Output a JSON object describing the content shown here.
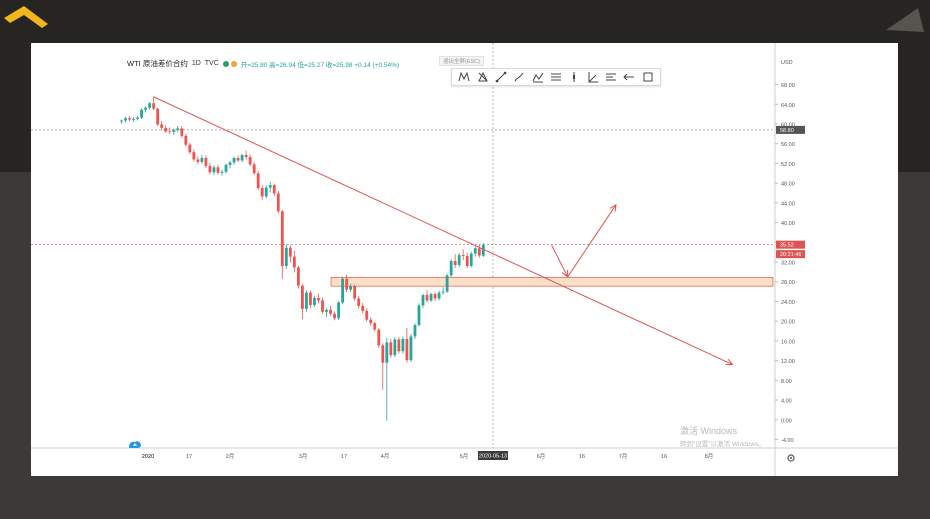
{
  "header": {
    "symbol": "WTI 原油差价合约",
    "interval": "1D",
    "source": "TVC",
    "ohlc": "开=25.80 高=26.94 低=25.27 收=25.98 +0.14 (+0.54%)"
  },
  "esc_hint": "退出全屏(ESC)",
  "toolbar_icons": [
    "pattern-icon",
    "triangle-icon",
    "line-icon",
    "brush-icon",
    "measure-icon",
    "fib-icon",
    "vertical-line-icon",
    "angle-icon",
    "text-icon",
    "arrow-icon",
    "rectangle-icon"
  ],
  "watermark": {
    "line1": "激活 Windows",
    "line2": "转到\"设置\"以激活 Windows。"
  },
  "chart_data": {
    "type": "candlestick",
    "currency": "USD",
    "ylim": [
      -6,
      70
    ],
    "y_ticks": [
      "68.00",
      "64.00",
      "60.00",
      "56.00",
      "52.00",
      "48.00",
      "44.00",
      "40.00",
      "36.00",
      "32.00",
      "28.00",
      "24.00",
      "20.00",
      "16.00",
      "12.00",
      "8.00",
      "4.00",
      "0.00",
      "-4.00"
    ],
    "x_ticks": [
      "2020",
      "17",
      "2月",
      "3月",
      "17",
      "4月",
      "5月",
      "2020-05-13",
      "6月",
      "16",
      "7月",
      "16",
      "8月"
    ],
    "crosshair_label": "2020-05-13",
    "price_labels": [
      {
        "text": "58.80",
        "color": "#555555"
      },
      {
        "text": "35.52",
        "color": "#e05353"
      },
      {
        "text": "20:21:46",
        "color": "#e05353"
      }
    ],
    "dashed_levels": [
      {
        "value": 58.8,
        "color": "#9a9a9a"
      },
      {
        "value": 35.52,
        "color": "#e05353"
      }
    ],
    "zone": {
      "low": 27.1,
      "high": 28.9,
      "color": "#fbe0c8",
      "border": "#e05353"
    },
    "candles": [
      [
        60.5,
        60.9,
        60.0,
        60.7
      ],
      [
        60.7,
        61.4,
        60.3,
        61.2
      ],
      [
        61.2,
        61.6,
        60.6,
        60.9
      ],
      [
        60.9,
        61.4,
        60.4,
        61.0
      ],
      [
        61.0,
        61.6,
        60.7,
        61.3
      ],
      [
        61.3,
        63.2,
        61.0,
        62.9
      ],
      [
        62.9,
        63.6,
        62.3,
        63.3
      ],
      [
        63.3,
        64.5,
        62.9,
        64.2
      ],
      [
        64.2,
        65.6,
        62.8,
        63.1
      ],
      [
        63.1,
        63.3,
        59.6,
        59.9
      ],
      [
        59.9,
        60.6,
        58.7,
        59.2
      ],
      [
        59.2,
        59.7,
        58.2,
        58.5
      ],
      [
        58.5,
        59.3,
        57.9,
        58.4
      ],
      [
        58.4,
        59.1,
        57.8,
        58.8
      ],
      [
        58.8,
        59.6,
        58.3,
        59.1
      ],
      [
        59.1,
        59.6,
        57.2,
        57.6
      ],
      [
        57.6,
        58.0,
        55.4,
        55.8
      ],
      [
        55.8,
        56.2,
        53.9,
        54.3
      ],
      [
        54.3,
        54.8,
        52.4,
        52.8
      ],
      [
        52.8,
        53.4,
        51.8,
        52.3
      ],
      [
        52.3,
        53.7,
        51.9,
        53.1
      ],
      [
        53.1,
        53.6,
        51.1,
        51.5
      ],
      [
        51.5,
        52.1,
        49.8,
        50.2
      ],
      [
        50.2,
        51.6,
        49.6,
        51.2
      ],
      [
        51.2,
        51.7,
        49.7,
        50.1
      ],
      [
        50.1,
        50.7,
        49.5,
        50.3
      ],
      [
        50.3,
        52.0,
        49.9,
        51.7
      ],
      [
        51.7,
        52.5,
        51.0,
        52.2
      ],
      [
        52.2,
        53.4,
        51.7,
        53.1
      ],
      [
        53.1,
        53.6,
        52.3,
        52.6
      ],
      [
        52.6,
        53.9,
        52.2,
        53.7
      ],
      [
        53.7,
        54.6,
        52.8,
        53.3
      ],
      [
        53.3,
        53.8,
        51.4,
        51.8
      ],
      [
        51.8,
        52.3,
        49.6,
        50.0
      ],
      [
        50.0,
        50.5,
        46.6,
        47.0
      ],
      [
        47.0,
        47.6,
        44.6,
        45.3
      ],
      [
        45.3,
        47.6,
        44.9,
        47.1
      ],
      [
        47.1,
        48.3,
        46.1,
        47.6
      ],
      [
        47.6,
        47.9,
        45.4,
        45.9
      ],
      [
        45.9,
        46.4,
        41.9,
        42.3
      ],
      [
        42.3,
        42.6,
        28.6,
        31.2
      ],
      [
        31.2,
        35.6,
        30.6,
        34.9
      ],
      [
        34.9,
        35.4,
        31.9,
        33.1
      ],
      [
        33.1,
        34.3,
        29.9,
        30.9
      ],
      [
        30.9,
        31.3,
        26.6,
        27.2
      ],
      [
        27.2,
        27.6,
        20.4,
        22.5
      ],
      [
        22.5,
        26.3,
        21.9,
        25.8
      ],
      [
        25.8,
        26.2,
        22.6,
        23.3
      ],
      [
        23.3,
        25.2,
        22.9,
        24.7
      ],
      [
        24.7,
        25.6,
        23.6,
        24.2
      ],
      [
        24.2,
        24.8,
        21.5,
        21.9
      ],
      [
        21.9,
        22.6,
        20.8,
        22.3
      ],
      [
        22.3,
        23.1,
        21.1,
        21.5
      ],
      [
        21.5,
        22.0,
        20.2,
        20.6
      ],
      [
        20.6,
        24.1,
        20.3,
        23.8
      ],
      [
        23.8,
        29.0,
        23.4,
        28.6
      ],
      [
        28.6,
        29.4,
        25.9,
        26.4
      ],
      [
        26.4,
        27.6,
        25.9,
        27.1
      ],
      [
        27.1,
        27.4,
        24.1,
        24.6
      ],
      [
        24.6,
        25.1,
        22.6,
        23.1
      ],
      [
        23.1,
        23.7,
        21.6,
        22.1
      ],
      [
        22.1,
        22.6,
        19.9,
        20.3
      ],
      [
        20.3,
        20.8,
        19.1,
        19.6
      ],
      [
        19.6,
        19.9,
        17.9,
        18.3
      ],
      [
        18.3,
        18.6,
        14.6,
        15.1
      ],
      [
        15.1,
        15.5,
        6.1,
        11.6
      ],
      [
        11.6,
        16.6,
        -0.2,
        15.7
      ],
      [
        15.7,
        16.4,
        12.6,
        13.1
      ],
      [
        13.1,
        16.8,
        12.7,
        16.3
      ],
      [
        16.3,
        16.8,
        13.4,
        13.9
      ],
      [
        13.9,
        16.9,
        13.4,
        16.4
      ],
      [
        16.4,
        18.6,
        11.6,
        12.1
      ],
      [
        12.1,
        17.4,
        11.7,
        16.9
      ],
      [
        16.9,
        19.6,
        16.4,
        19.2
      ],
      [
        19.2,
        23.6,
        18.9,
        23.2
      ],
      [
        23.2,
        25.6,
        22.7,
        25.3
      ],
      [
        25.3,
        26.3,
        23.8,
        24.2
      ],
      [
        24.2,
        25.8,
        23.9,
        25.5
      ],
      [
        25.5,
        25.9,
        24.1,
        24.6
      ],
      [
        24.6,
        26.2,
        24.2,
        25.8
      ],
      [
        25.8,
        26.9,
        25.3,
        26.0
      ],
      [
        26.0,
        29.6,
        25.7,
        29.3
      ],
      [
        29.3,
        32.6,
        28.9,
        32.2
      ],
      [
        32.2,
        33.6,
        30.8,
        31.4
      ],
      [
        31.4,
        33.9,
        30.9,
        33.4
      ],
      [
        33.4,
        34.6,
        32.4,
        33.2
      ],
      [
        33.2,
        33.9,
        30.8,
        31.2
      ],
      [
        31.2,
        34.1,
        30.9,
        33.7
      ],
      [
        33.7,
        35.2,
        33.1,
        34.8
      ],
      [
        34.8,
        35.6,
        32.9,
        33.3
      ],
      [
        33.3,
        35.9,
        33.0,
        35.5
      ]
    ]
  },
  "annotations": {
    "trendline": {
      "from": [
        8,
        65.5
      ],
      "to": [
        152,
        11.2
      ],
      "color": "#e05353"
    },
    "arrow_down": {
      "from": [
        107,
        35.4
      ],
      "to": [
        111,
        29.0
      ],
      "color": "#e05353"
    },
    "arrow_up": {
      "from": [
        111,
        29.0
      ],
      "to": [
        123,
        43.6
      ],
      "color": "#e05353"
    }
  }
}
